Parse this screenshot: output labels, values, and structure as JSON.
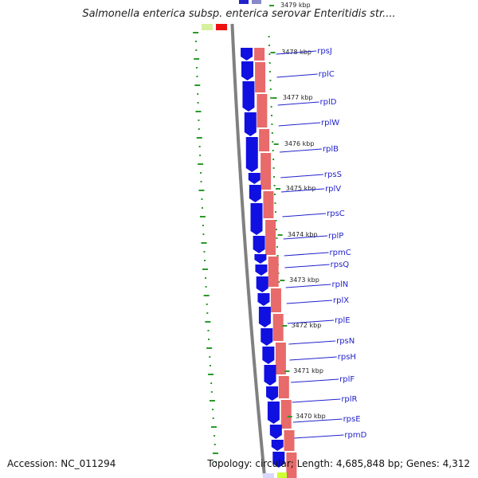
{
  "title": "Salmonella enterica subsp. enterica serovar Enteritidis str....",
  "accession_text": "Accession: NC_011294",
  "summary_text": "Topology: circular; Length: 4,685,848 bp; Genes: 4,312",
  "colors": {
    "gene": "#1010e0",
    "feature_track": "#e86a6a",
    "backbone": "#808080",
    "gene_label": "#2222cc",
    "gc_ticks": "#2a9a2a"
  },
  "kbp_marks": [
    {
      "label": "3479 kbp",
      "kbp": 3479
    },
    {
      "label": "3478 kbp",
      "kbp": 3478
    },
    {
      "label": "3477 kbp",
      "kbp": 3477
    },
    {
      "label": "3476 kbp",
      "kbp": 3476
    },
    {
      "label": "3475 kbp",
      "kbp": 3475
    },
    {
      "label": "3474 kbp",
      "kbp": 3474
    },
    {
      "label": "3473 kbp",
      "kbp": 3473
    },
    {
      "label": "3472 kbp",
      "kbp": 3472
    },
    {
      "label": "3471 kbp",
      "kbp": 3471
    },
    {
      "label": "3470 kbp",
      "kbp": 3470
    }
  ],
  "genes": [
    {
      "name": "rpsJ"
    },
    {
      "name": "rplC"
    },
    {
      "name": "rplD"
    },
    {
      "name": "rplW"
    },
    {
      "name": "rplB"
    },
    {
      "name": "rpsS"
    },
    {
      "name": "rplV"
    },
    {
      "name": "rpsC"
    },
    {
      "name": "rplP"
    },
    {
      "name": "rpmC"
    },
    {
      "name": "rpsQ"
    },
    {
      "name": "rplN"
    },
    {
      "name": "rplX"
    },
    {
      "name": "rplE"
    },
    {
      "name": "rpsN"
    },
    {
      "name": "rpsH"
    },
    {
      "name": "rplF"
    },
    {
      "name": "rplR"
    },
    {
      "name": "rpsE"
    },
    {
      "name": "rpmD"
    }
  ]
}
